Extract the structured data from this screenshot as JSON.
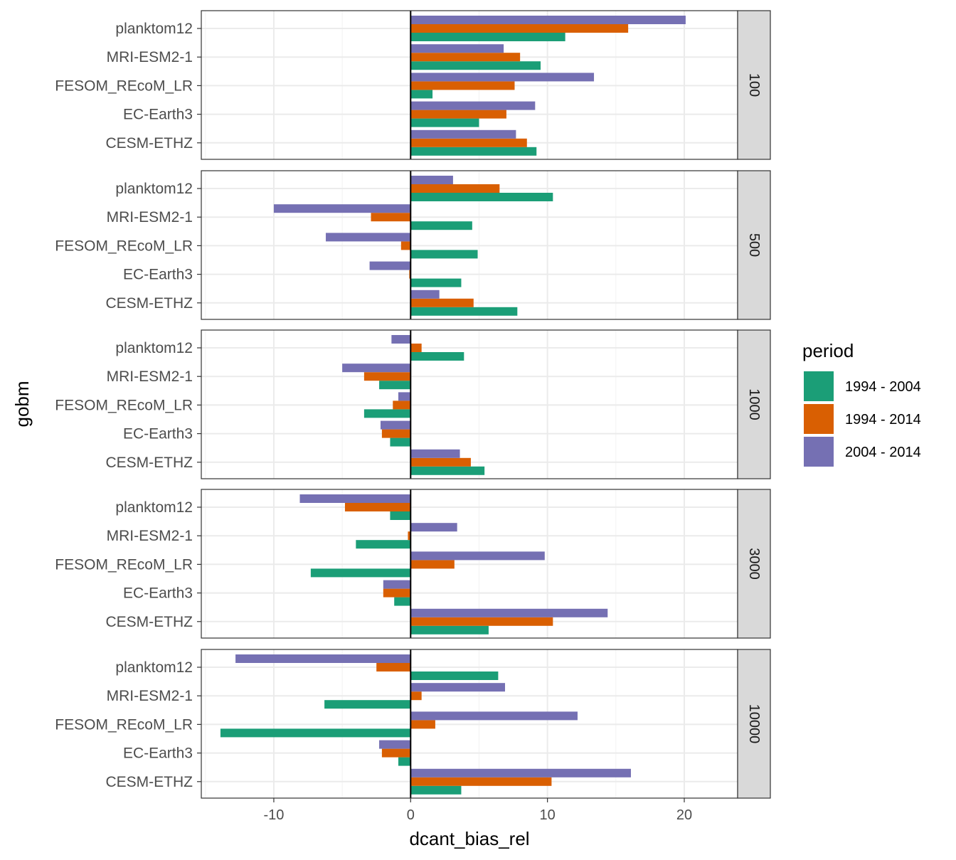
{
  "chart_data": {
    "type": "bar",
    "orientation": "horizontal",
    "facet_variable": "depth",
    "xlabel": "dcant_bias_rel",
    "ylabel": "gobm",
    "xlim": [
      -15.3,
      23.9
    ],
    "xticks": [
      -10,
      0,
      10,
      20
    ],
    "xtick_labels": [
      "-10",
      "0",
      "10",
      "20"
    ],
    "grid": true,
    "legend": {
      "title": "period",
      "placement": "right"
    },
    "categories": [
      "planktom12",
      "MRI-ESM2-1",
      "FESOM_REcoM_LR",
      "EC-Earth3",
      "CESM-ETHZ"
    ],
    "series_names": [
      "1994 - 2004",
      "1994 - 2014",
      "2004 - 2014"
    ],
    "colors": [
      "#1b9e77",
      "#d95f02",
      "#7570b3"
    ],
    "panels": [
      {
        "label": "100",
        "series": [
          {
            "name": "1994 - 2004",
            "values": [
              11.3,
              9.5,
              1.6,
              5.0,
              9.2
            ]
          },
          {
            "name": "1994 - 2014",
            "values": [
              15.9,
              8.0,
              7.6,
              7.0,
              8.5
            ]
          },
          {
            "name": "2004 - 2014",
            "values": [
              20.1,
              6.8,
              13.4,
              9.1,
              7.7
            ]
          }
        ]
      },
      {
        "label": "500",
        "series": [
          {
            "name": "1994 - 2004",
            "values": [
              10.4,
              4.5,
              4.9,
              3.7,
              7.8
            ]
          },
          {
            "name": "1994 - 2014",
            "values": [
              6.5,
              -2.9,
              -0.7,
              -0.1,
              4.6
            ]
          },
          {
            "name": "2004 - 2014",
            "values": [
              3.1,
              -10.0,
              -6.2,
              -3.0,
              2.1
            ]
          }
        ]
      },
      {
        "label": "1000",
        "series": [
          {
            "name": "1994 - 2004",
            "values": [
              3.9,
              -2.3,
              -3.4,
              -1.5,
              5.4
            ]
          },
          {
            "name": "1994 - 2014",
            "values": [
              0.8,
              -3.4,
              -1.3,
              -2.1,
              4.4
            ]
          },
          {
            "name": "2004 - 2014",
            "values": [
              -1.4,
              -5.0,
              -0.9,
              -2.2,
              3.6
            ]
          }
        ]
      },
      {
        "label": "3000",
        "series": [
          {
            "name": "1994 - 2004",
            "values": [
              -1.5,
              -4.0,
              -7.3,
              -1.2,
              5.7
            ]
          },
          {
            "name": "1994 - 2014",
            "values": [
              -4.8,
              -0.2,
              3.2,
              -2.0,
              10.4
            ]
          },
          {
            "name": "2004 - 2014",
            "values": [
              -8.1,
              3.4,
              9.8,
              -2.0,
              14.4
            ]
          }
        ]
      },
      {
        "label": "10000",
        "series": [
          {
            "name": "1994 - 2004",
            "values": [
              6.4,
              -6.3,
              -13.9,
              -0.9,
              3.7
            ]
          },
          {
            "name": "1994 - 2014",
            "values": [
              -2.5,
              0.8,
              1.8,
              -2.1,
              10.3
            ]
          },
          {
            "name": "2004 - 2014",
            "values": [
              -12.8,
              6.9,
              12.2,
              -2.3,
              16.1
            ]
          }
        ]
      }
    ]
  }
}
